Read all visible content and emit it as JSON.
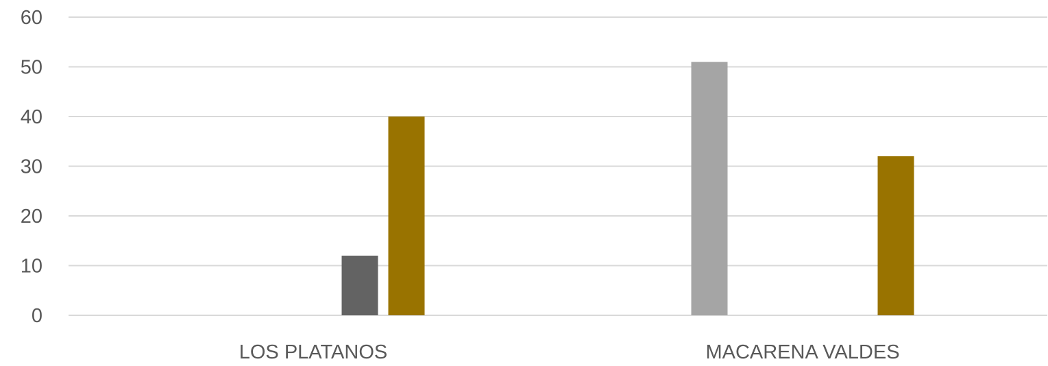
{
  "chart_data": {
    "type": "bar",
    "categories": [
      "LOS PLATANOS",
      "MACARENA VALDES"
    ],
    "series": [
      {
        "values": [
          0,
          51
        ],
        "color": "#a5a5a5"
      },
      {
        "values": [
          0,
          0
        ],
        "color": "#5a9bd5"
      },
      {
        "values": [
          0,
          0
        ],
        "color": "#ed7d31"
      },
      {
        "values": [
          12,
          0
        ],
        "color": "#636363"
      },
      {
        "values": [
          40,
          32
        ],
        "color": "#997300"
      }
    ],
    "yticks": [
      "0",
      "10",
      "20",
      "30",
      "40",
      "50",
      "60"
    ],
    "ylim": [
      0,
      60
    ],
    "grid": true,
    "legend": "none"
  }
}
